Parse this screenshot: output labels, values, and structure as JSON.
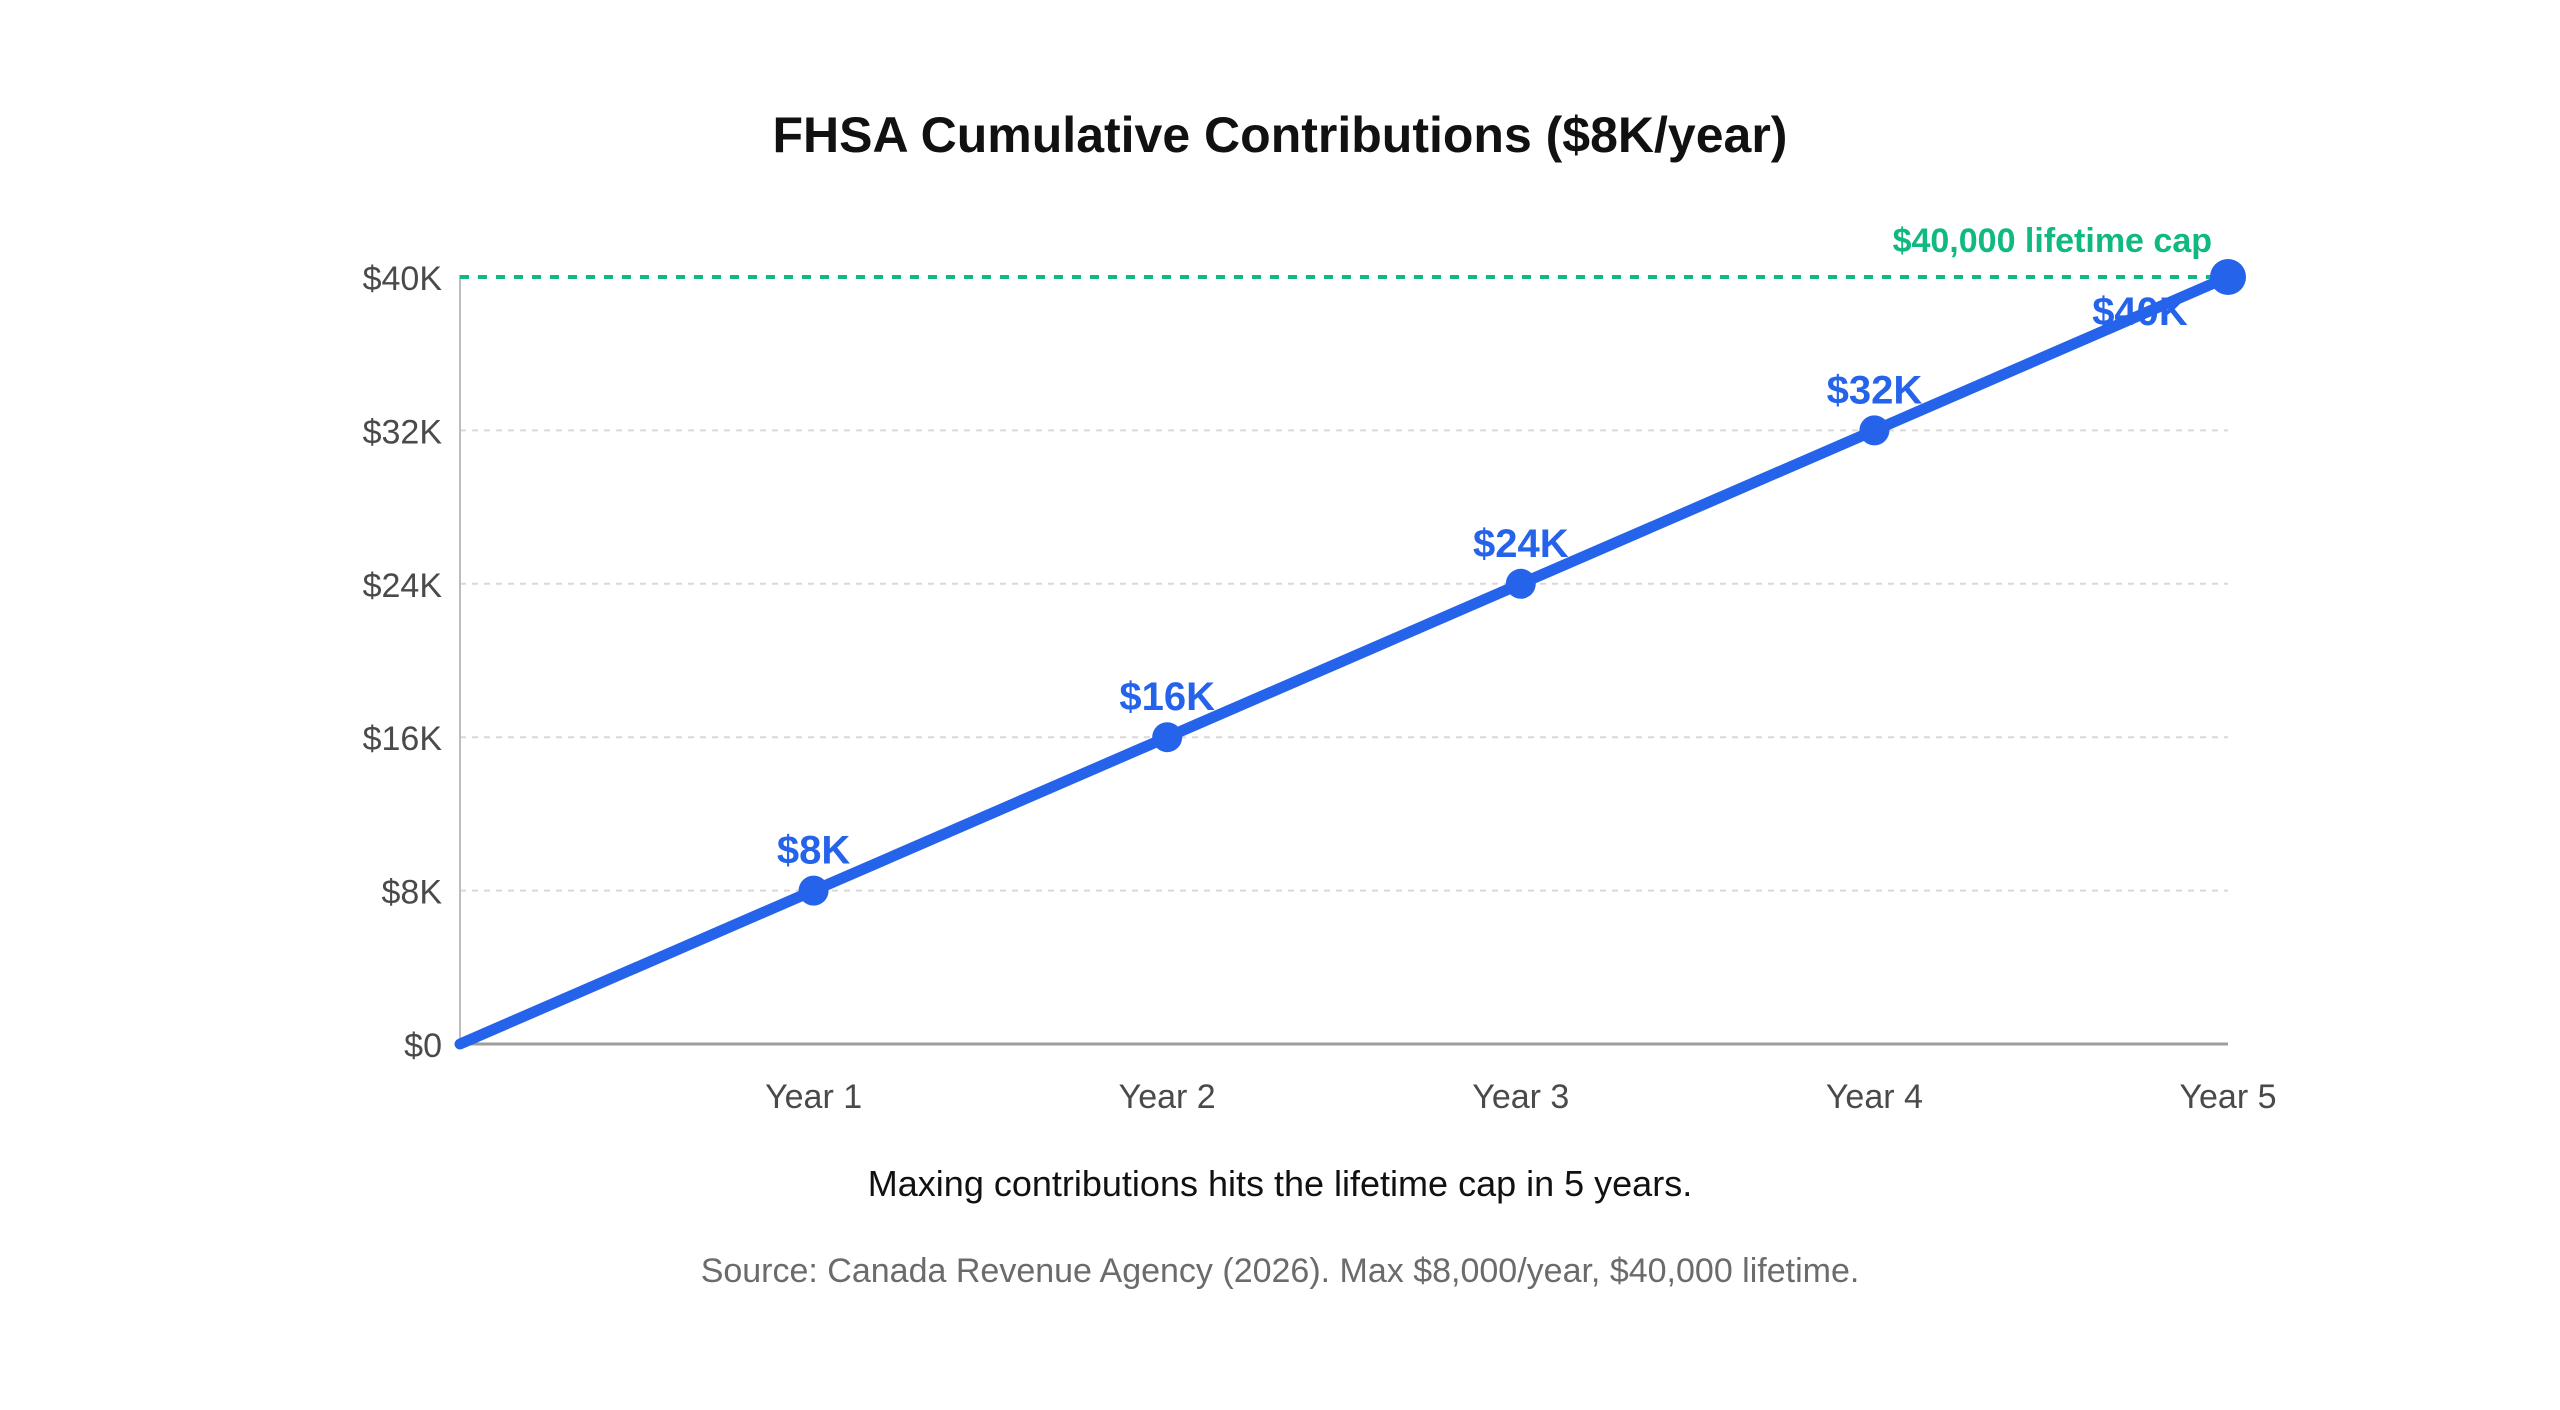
{
  "chart_data": {
    "type": "line",
    "title": "FHSA Cumulative Contributions ($8K/year)",
    "subtitle": "Maxing contributions hits the lifetime cap in 5 years.",
    "source": "Source: Canada Revenue Agency (2026). Max $8,000/year, $40,000 lifetime.",
    "xlabel": "",
    "ylabel": "",
    "x": [
      0,
      1,
      2,
      3,
      4,
      5
    ],
    "x_tick_labels": [
      "",
      "Year 1",
      "Year 2",
      "Year 3",
      "Year 4",
      "Year 5"
    ],
    "series": [
      {
        "values": [
          0,
          8000,
          16000,
          24000,
          32000,
          40000
        ],
        "point_labels": [
          "",
          "$8K",
          "$16K",
          "$24K",
          "$32K",
          "$40K"
        ],
        "color": "#2563eb"
      }
    ],
    "ylim": [
      0,
      40000
    ],
    "y_ticks": [
      0,
      8000,
      16000,
      24000,
      32000,
      40000
    ],
    "y_tick_labels": [
      "$0",
      "$8K",
      "$16K",
      "$24K",
      "$32K",
      "$40K"
    ],
    "reference_line": {
      "value": 40000,
      "label": "$40,000 lifetime cap",
      "color": "#10b981",
      "style": "dashed"
    },
    "grid": true,
    "legend": "none"
  }
}
